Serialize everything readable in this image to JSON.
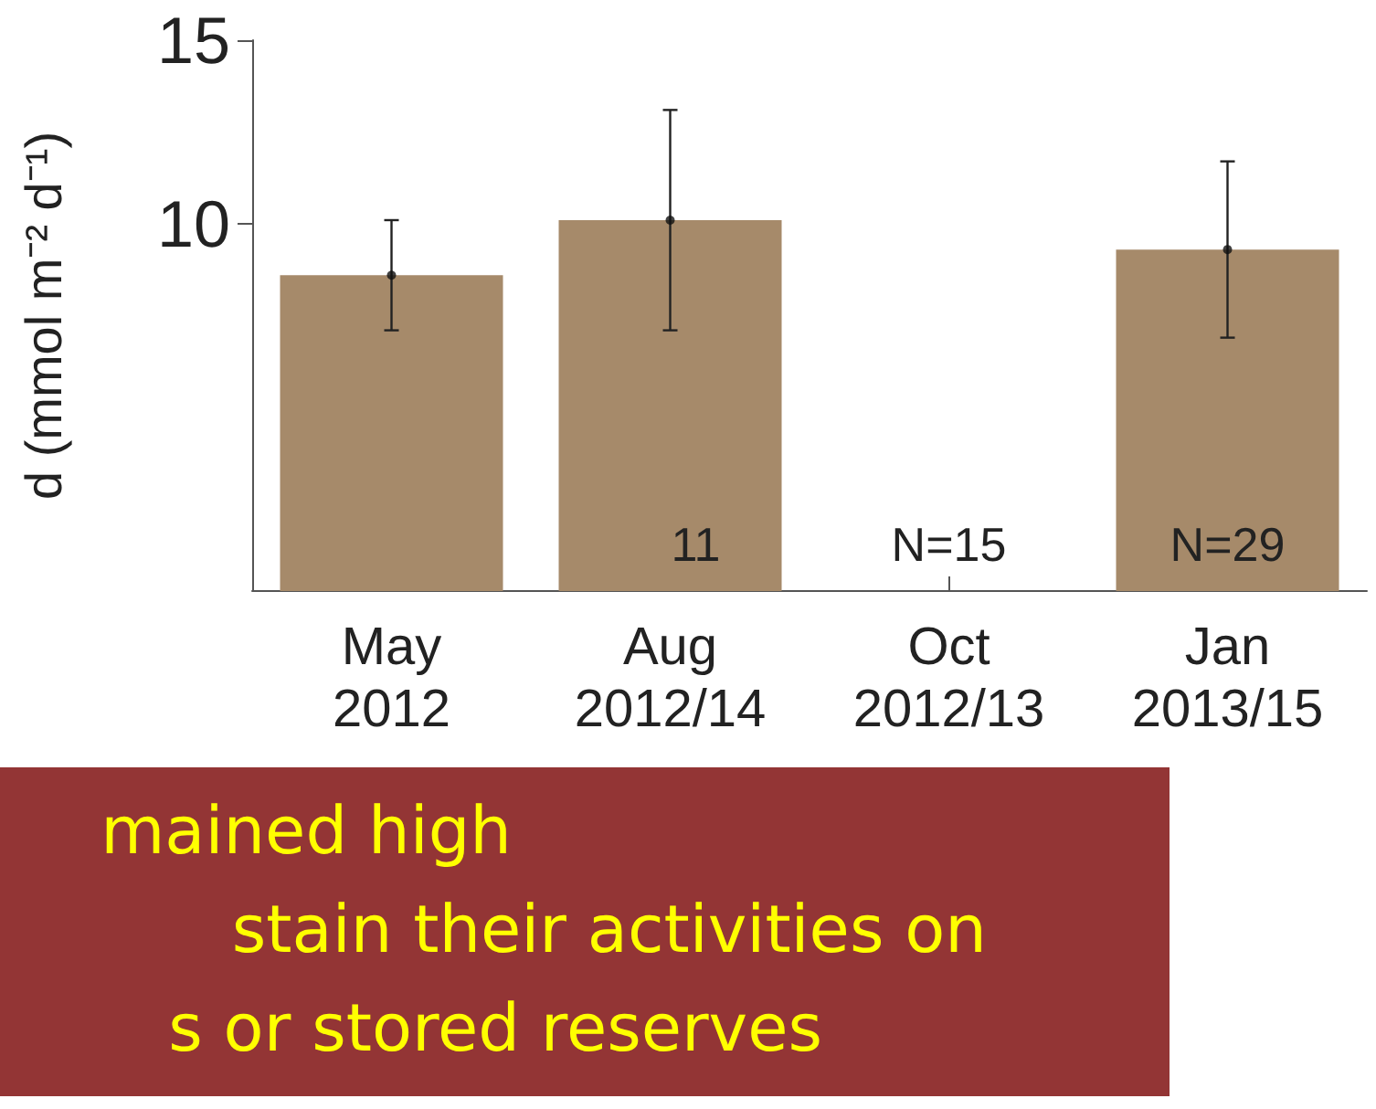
{
  "chart_data": {
    "type": "bar",
    "categories": [
      "May\n2012",
      "Aug\n2012/14",
      "Oct\n2012/13",
      "Jan\n2013/15"
    ],
    "series": [
      {
        "color": "#a68a6a",
        "values": [
          8.6,
          10.1,
          null,
          9.3
        ],
        "errors": [
          1.5,
          3.0,
          null,
          [
            6.9,
            11.7
          ]
        ]
      },
      {
        "type": "scatter",
        "color": "#111111",
        "marker": "circle",
        "x": [
          "May\n2012",
          "Aug\n2012/14",
          "Oct\n2012/13",
          "Jan\n2013/15"
        ],
        "values": [
          8.6,
          10.1,
          null,
          9.3
        ]
      }
    ],
    "ylabel": "d (mmol m⁻² d⁻¹)",
    "ylim": [
      0,
      15
    ],
    "yticks": [
      10,
      15
    ],
    "annotations": [
      "mained high",
      "stain their activities on",
      "s or stored reserves",
      "11",
      "N=15",
      "N=29"
    ]
  }
}
